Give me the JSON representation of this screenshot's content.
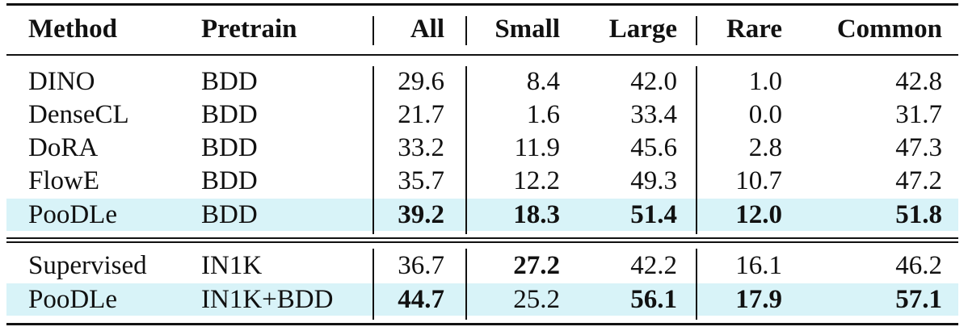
{
  "table": {
    "headers": [
      "Method",
      "Pretrain",
      "All",
      "Small",
      "Large",
      "Rare",
      "Common"
    ],
    "groups": [
      {
        "rows": [
          {
            "method": "DINO",
            "pretrain": "BDD",
            "values": [
              "29.6",
              "8.4",
              "42.0",
              "1.0",
              "42.8"
            ],
            "bold": [
              false,
              false,
              false,
              false,
              false
            ],
            "highlight": false
          },
          {
            "method": "DenseCL",
            "pretrain": "BDD",
            "values": [
              "21.7",
              "1.6",
              "33.4",
              "0.0",
              "31.7"
            ],
            "bold": [
              false,
              false,
              false,
              false,
              false
            ],
            "highlight": false
          },
          {
            "method": "DoRA",
            "pretrain": "BDD",
            "values": [
              "33.2",
              "11.9",
              "45.6",
              "2.8",
              "47.3"
            ],
            "bold": [
              false,
              false,
              false,
              false,
              false
            ],
            "highlight": false
          },
          {
            "method": "FlowE",
            "pretrain": "BDD",
            "values": [
              "35.7",
              "12.2",
              "49.3",
              "10.7",
              "47.2"
            ],
            "bold": [
              false,
              false,
              false,
              false,
              false
            ],
            "highlight": false
          },
          {
            "method": "PooDLe",
            "pretrain": "BDD",
            "values": [
              "39.2",
              "18.3",
              "51.4",
              "12.0",
              "51.8"
            ],
            "bold": [
              true,
              true,
              true,
              true,
              true
            ],
            "highlight": true
          }
        ]
      },
      {
        "rows": [
          {
            "method": "Supervised",
            "pretrain": "IN1K",
            "values": [
              "36.7",
              "27.2",
              "42.2",
              "16.1",
              "46.2"
            ],
            "bold": [
              false,
              true,
              false,
              false,
              false
            ],
            "highlight": false
          },
          {
            "method": "PooDLe",
            "pretrain": "IN1K+BDD",
            "values": [
              "44.7",
              "25.2",
              "56.1",
              "17.9",
              "57.1"
            ],
            "bold": [
              true,
              false,
              true,
              true,
              true
            ],
            "highlight": true
          }
        ]
      }
    ],
    "highlight_color": "#d8f3f8"
  }
}
